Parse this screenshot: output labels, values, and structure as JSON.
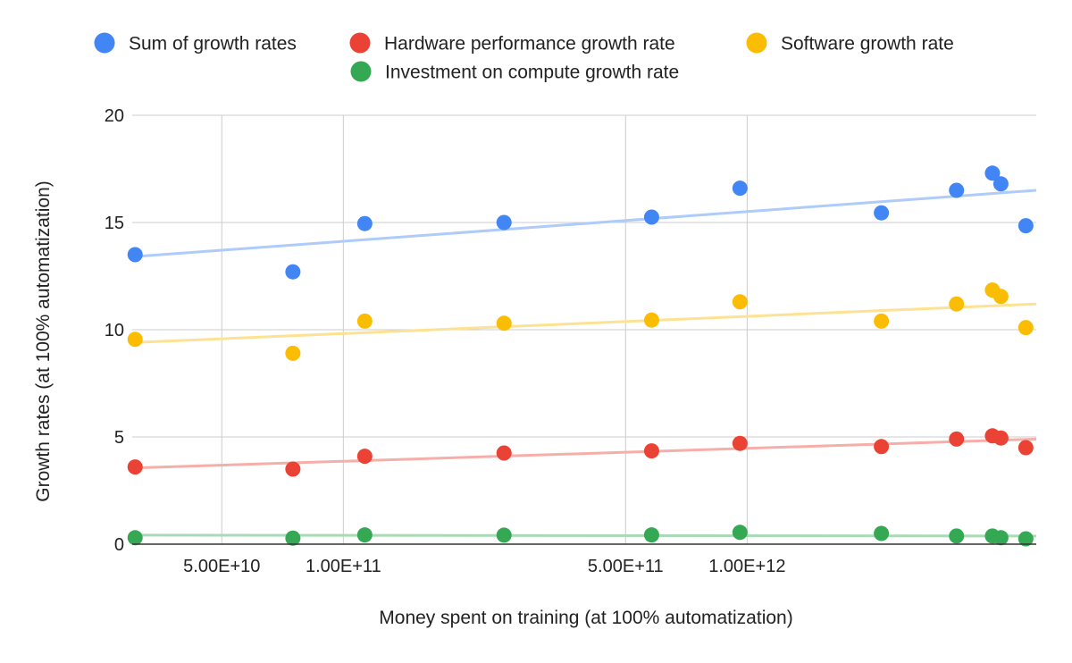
{
  "chart_data": {
    "type": "scatter",
    "title": "",
    "xlabel": "Money spent on training (at 100% automatization)",
    "ylabel": "Growth rates (at 100% automatization)",
    "x_scale": "log",
    "xlim": [
      30000000000,
      5200000000000
    ],
    "ylim": [
      0,
      20
    ],
    "grid": true,
    "legend_position": "top",
    "x_ticks": [
      {
        "value": 50000000000,
        "label": "5.00E+10"
      },
      {
        "value": 100000000000,
        "label": "1.00E+11"
      },
      {
        "value": 500000000000,
        "label": "5.00E+11"
      },
      {
        "value": 1000000000000,
        "label": "1.00E+12"
      }
    ],
    "y_ticks": [
      {
        "value": 0,
        "label": "0"
      },
      {
        "value": 5,
        "label": "5"
      },
      {
        "value": 10,
        "label": "10"
      },
      {
        "value": 15,
        "label": "15"
      },
      {
        "value": 20,
        "label": "20"
      }
    ],
    "x": [
      30500000000,
      75000000000,
      113000000000,
      250000000000,
      580000000000,
      960000000000,
      2150000000000,
      3300000000000,
      4050000000000,
      4250000000000,
      4900000000000
    ],
    "series": [
      {
        "name": "Sum of growth rates",
        "color": "#4285f4",
        "trend_color": "#aecbfa",
        "values": [
          13.5,
          12.7,
          14.95,
          15.0,
          15.25,
          16.6,
          15.45,
          16.5,
          17.3,
          16.8,
          14.85
        ],
        "trendline": [
          13.4,
          16.5
        ]
      },
      {
        "name": "Hardware performance growth rate",
        "color": "#ea4335",
        "trend_color": "#f6aea9",
        "values": [
          3.6,
          3.5,
          4.1,
          4.25,
          4.35,
          4.7,
          4.55,
          4.9,
          5.05,
          4.95,
          4.5
        ],
        "trendline": [
          3.55,
          4.9
        ]
      },
      {
        "name": "Software growth rate",
        "color": "#fbbc04",
        "trend_color": "#fde293",
        "values": [
          9.55,
          8.9,
          10.4,
          10.3,
          10.45,
          11.3,
          10.4,
          11.2,
          11.85,
          11.55,
          10.1
        ],
        "trendline": [
          9.4,
          11.2
        ]
      },
      {
        "name": "Investment on compute growth rate",
        "color": "#34a853",
        "trend_color": "#a8dab5",
        "values": [
          0.3,
          0.28,
          0.43,
          0.42,
          0.43,
          0.55,
          0.5,
          0.38,
          0.38,
          0.3,
          0.25
        ],
        "trendline": [
          0.42,
          0.38
        ]
      }
    ]
  }
}
